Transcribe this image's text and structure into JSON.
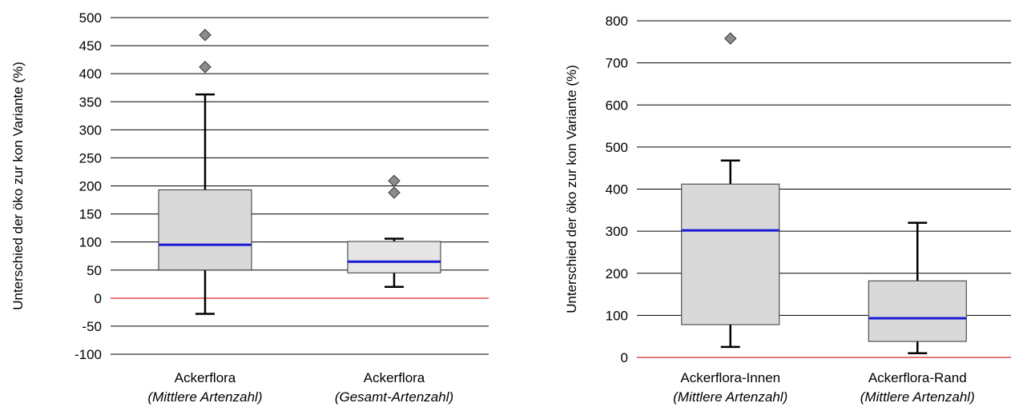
{
  "chart_data": [
    {
      "type": "box",
      "title": "",
      "xlabel": "",
      "ylabel": "Unterschied der öko zur kon Variante (%)",
      "ylim": [
        -100,
        500
      ],
      "yticks": [
        -100,
        -50,
        0,
        50,
        100,
        150,
        200,
        250,
        300,
        350,
        400,
        450,
        500
      ],
      "grid": true,
      "reference_line": {
        "y": 0,
        "color": "#e8494f"
      },
      "median_color": "#1a1ad6",
      "categories": [
        {
          "label": "Ackerflora",
          "sublabel": "(Mittlere Artenzahl)"
        },
        {
          "label": "Ackerflora",
          "sublabel": "(Gesamt-Artenzahl)"
        }
      ],
      "boxes": [
        {
          "whisker_low": -28,
          "q1": 50,
          "median": 95,
          "q3": 193,
          "whisker_high": 363,
          "outliers": [
            412,
            469
          ],
          "fill": "#d9d9d9"
        },
        {
          "whisker_low": 20,
          "q1": 45,
          "median": 65,
          "q3": 101,
          "whisker_high": 106,
          "outliers": [
            188,
            209
          ],
          "fill": "#e6e6e6"
        }
      ]
    },
    {
      "type": "box",
      "title": "",
      "xlabel": "",
      "ylabel": "Unterschied der öko zur kon Variante (%)",
      "ylim": [
        0,
        800
      ],
      "yticks": [
        0,
        100,
        200,
        300,
        400,
        500,
        600,
        700,
        800
      ],
      "grid": true,
      "reference_line": {
        "y": 0,
        "color": "#e8494f"
      },
      "median_color": "#1a1ad6",
      "categories": [
        {
          "label": "Ackerflora-Innen",
          "sublabel": "(Mittlere Artenzahl)"
        },
        {
          "label": "Ackerflora-Rand",
          "sublabel": "(Mittlere Artenzahl)"
        }
      ],
      "boxes": [
        {
          "whisker_low": 25,
          "q1": 78,
          "median": 302,
          "q3": 412,
          "whisker_high": 468,
          "outliers": [
            758
          ],
          "fill": "#d9d9d9"
        },
        {
          "whisker_low": 10,
          "q1": 38,
          "median": 93,
          "q3": 182,
          "whisker_high": 320,
          "outliers": [],
          "fill": "#d9d9d9"
        }
      ]
    }
  ]
}
